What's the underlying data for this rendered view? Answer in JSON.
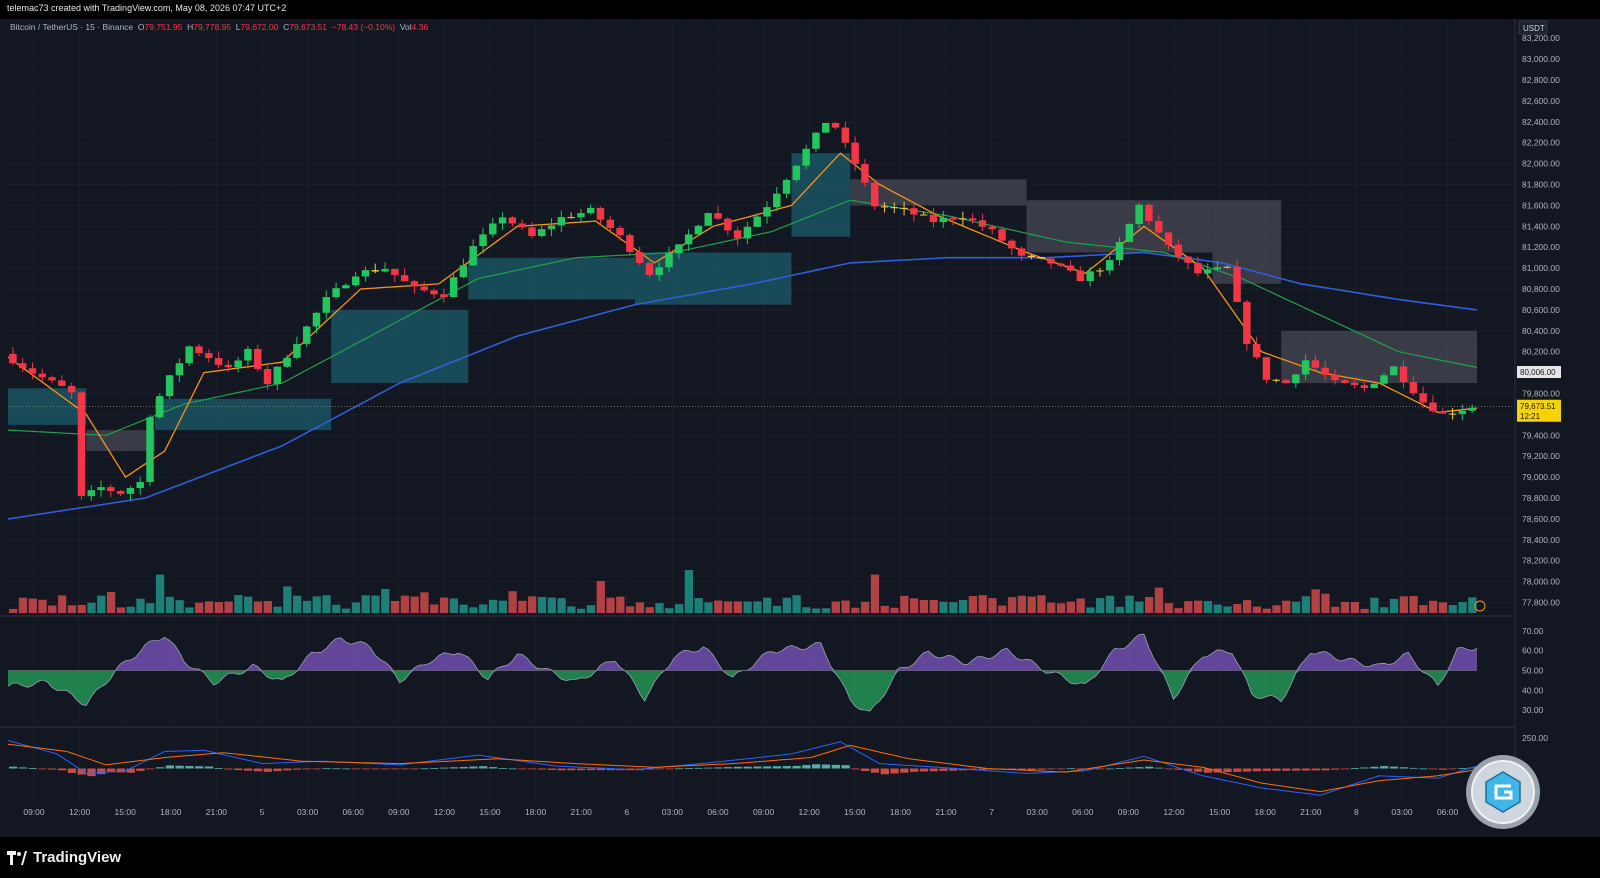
{
  "header": {
    "credit": "telemac73 created with TradingView.com, May 08, 2026 07:47 UTC+2"
  },
  "legend": {
    "symbol": "Bitcoin / TetherUS · 15 · Binance",
    "o_label": "O",
    "o_value": "79,751.95",
    "h_label": "H",
    "h_value": "79,778.95",
    "l_label": "L",
    "l_value": "79,672.00",
    "c_label": "C",
    "c_value": "79,673.51",
    "change": "−78.43 (−0.10%)",
    "vol_label": "Vol",
    "vol_value": "4.36"
  },
  "price_axis": {
    "currency": "USDT",
    "ticks": [
      "83,200.00",
      "83,000.00",
      "82,800.00",
      "82,600.00",
      "82,400.00",
      "82,200.00",
      "82,000.00",
      "81,800.00",
      "81,600.00",
      "81,400.00",
      "81,200.00",
      "81,000.00",
      "80,800.00",
      "80,600.00",
      "80,400.00",
      "80,200.00",
      "79,800.00",
      "79,600.00",
      "79,400.00",
      "79,200.00",
      "79,000.00",
      "78,800.00",
      "78,600.00",
      "78,400.00",
      "78,200.00",
      "78,000.00",
      "77,800.00"
    ],
    "level_label": "80,006.00",
    "last_price": "79,673.51",
    "countdown": "12:21"
  },
  "rsi_axis": {
    "ticks": [
      "70.00",
      "60.00",
      "50.00",
      "40.00",
      "30.00"
    ]
  },
  "macd_axis": {
    "ticks": [
      "250.00"
    ]
  },
  "time_axis": {
    "ticks": [
      "09:00",
      "12:00",
      "15:00",
      "18:00",
      "21:00",
      "5",
      "03:00",
      "06:00",
      "09:00",
      "12:00",
      "15:00",
      "18:00",
      "21:00",
      "6",
      "03:00",
      "06:00",
      "09:00",
      "12:00",
      "15:00",
      "18:00",
      "21:00",
      "7",
      "03:00",
      "06:00",
      "09:00",
      "12:00",
      "15:00",
      "18:00",
      "21:00",
      "8",
      "03:00",
      "06:00"
    ]
  },
  "brand": {
    "name": "TradingView"
  },
  "colors": {
    "bull": "#22c55e",
    "bear": "#f23645",
    "neutral": "#f7c948",
    "ema_fast": "#f7931a",
    "ma_mid": "#22a04a",
    "ma_slow": "#2f5fd7",
    "cloud_bull": "#1b5868",
    "cloud_bear": "#4a4c57",
    "vol_bull": "#26a69a",
    "vol_bear": "#ef5350",
    "rsi_up": "#7e57c2",
    "rsi_down": "#26a65b"
  },
  "chart_data": {
    "type": "candlestick",
    "title": "Bitcoin / TetherUS · 15 · Binance",
    "ylim": [
      77700,
      83250
    ],
    "last_price": 79673.51,
    "highlight_level": 80006,
    "price_path": [
      [
        0,
        80180
      ],
      [
        3,
        80000
      ],
      [
        6,
        79860
      ],
      [
        7,
        79800
      ],
      [
        8,
        78800
      ],
      [
        10,
        78900
      ],
      [
        12,
        78850
      ],
      [
        14,
        78950
      ],
      [
        15,
        79600
      ],
      [
        17,
        79950
      ],
      [
        19,
        80250
      ],
      [
        21,
        80150
      ],
      [
        23,
        80030
      ],
      [
        25,
        80200
      ],
      [
        27,
        79900
      ],
      [
        30,
        80300
      ],
      [
        33,
        80700
      ],
      [
        36,
        80950
      ],
      [
        39,
        81000
      ],
      [
        42,
        80800
      ],
      [
        45,
        80750
      ],
      [
        48,
        81200
      ],
      [
        51,
        81500
      ],
      [
        54,
        81300
      ],
      [
        57,
        81480
      ],
      [
        60,
        81550
      ],
      [
        63,
        81300
      ],
      [
        66,
        80950
      ],
      [
        69,
        81200
      ],
      [
        72,
        81550
      ],
      [
        75,
        81300
      ],
      [
        78,
        81600
      ],
      [
        81,
        82000
      ],
      [
        84,
        82400
      ],
      [
        85,
        82350
      ],
      [
        87,
        82000
      ],
      [
        89,
        81600
      ],
      [
        92,
        81550
      ],
      [
        95,
        81450
      ],
      [
        98,
        81500
      ],
      [
        101,
        81350
      ],
      [
        104,
        81100
      ],
      [
        107,
        81050
      ],
      [
        110,
        80900
      ],
      [
        113,
        81050
      ],
      [
        116,
        81600
      ],
      [
        119,
        81200
      ],
      [
        122,
        80950
      ],
      [
        125,
        81000
      ],
      [
        127,
        80300
      ],
      [
        129,
        79950
      ],
      [
        131,
        79900
      ],
      [
        133,
        80120
      ],
      [
        136,
        79900
      ],
      [
        139,
        79850
      ],
      [
        142,
        80050
      ],
      [
        145,
        79720
      ],
      [
        147,
        79600
      ],
      [
        150,
        79675
      ]
    ],
    "ema_fast": [
      [
        0,
        80150
      ],
      [
        8,
        79600
      ],
      [
        12,
        79000
      ],
      [
        16,
        79250
      ],
      [
        20,
        80000
      ],
      [
        28,
        80100
      ],
      [
        36,
        80800
      ],
      [
        44,
        80850
      ],
      [
        52,
        81400
      ],
      [
        60,
        81450
      ],
      [
        66,
        81050
      ],
      [
        72,
        81400
      ],
      [
        80,
        81600
      ],
      [
        85,
        82100
      ],
      [
        89,
        81800
      ],
      [
        95,
        81500
      ],
      [
        104,
        81150
      ],
      [
        110,
        80950
      ],
      [
        116,
        81400
      ],
      [
        122,
        81000
      ],
      [
        128,
        80200
      ],
      [
        134,
        80000
      ],
      [
        140,
        79900
      ],
      [
        146,
        79620
      ],
      [
        150,
        79660
      ]
    ],
    "ma_mid": [
      [
        0,
        79450
      ],
      [
        10,
        79400
      ],
      [
        18,
        79700
      ],
      [
        28,
        79900
      ],
      [
        38,
        80400
      ],
      [
        48,
        80900
      ],
      [
        58,
        81100
      ],
      [
        68,
        81150
      ],
      [
        78,
        81350
      ],
      [
        86,
        81650
      ],
      [
        96,
        81500
      ],
      [
        108,
        81250
      ],
      [
        118,
        81150
      ],
      [
        126,
        80900
      ],
      [
        134,
        80550
      ],
      [
        142,
        80200
      ],
      [
        150,
        80050
      ]
    ],
    "ma_slow": [
      [
        0,
        78600
      ],
      [
        14,
        78800
      ],
      [
        28,
        79300
      ],
      [
        40,
        79900
      ],
      [
        52,
        80350
      ],
      [
        64,
        80650
      ],
      [
        76,
        80850
      ],
      [
        86,
        81050
      ],
      [
        96,
        81100
      ],
      [
        106,
        81100
      ],
      [
        116,
        81150
      ],
      [
        124,
        81050
      ],
      [
        132,
        80850
      ],
      [
        142,
        80700
      ],
      [
        150,
        80600
      ]
    ],
    "cloud": [
      {
        "from": 0,
        "to": 8,
        "top": 79850,
        "bottom": 79500,
        "bull": true
      },
      {
        "from": 8,
        "to": 15,
        "top": 79450,
        "bottom": 79250,
        "bull": false
      },
      {
        "from": 15,
        "to": 33,
        "top": 79750,
        "bottom": 79450,
        "bull": true
      },
      {
        "from": 33,
        "to": 47,
        "top": 80600,
        "bottom": 79900,
        "bull": true
      },
      {
        "from": 47,
        "to": 64,
        "top": 81100,
        "bottom": 80700,
        "bull": true
      },
      {
        "from": 64,
        "to": 80,
        "top": 81150,
        "bottom": 80650,
        "bull": true
      },
      {
        "from": 80,
        "to": 86,
        "top": 82100,
        "bottom": 81300,
        "bull": true
      },
      {
        "from": 86,
        "to": 104,
        "top": 81850,
        "bottom": 81600,
        "bull": false
      },
      {
        "from": 104,
        "to": 123,
        "top": 81650,
        "bottom": 81150,
        "bull": false
      },
      {
        "from": 123,
        "to": 130,
        "top": 81650,
        "bottom": 80850,
        "bull": false
      },
      {
        "from": 130,
        "to": 150,
        "top": 80400,
        "bottom": 79900,
        "bull": false
      }
    ],
    "rsi_ylim": [
      25,
      75
    ],
    "rsi": [
      [
        0,
        42
      ],
      [
        4,
        44
      ],
      [
        8,
        33
      ],
      [
        11,
        50
      ],
      [
        14,
        62
      ],
      [
        16,
        68
      ],
      [
        18,
        55
      ],
      [
        21,
        44
      ],
      [
        25,
        52
      ],
      [
        28,
        44
      ],
      [
        31,
        58
      ],
      [
        34,
        66
      ],
      [
        37,
        62
      ],
      [
        40,
        45
      ],
      [
        43,
        55
      ],
      [
        46,
        60
      ],
      [
        49,
        46
      ],
      [
        52,
        58
      ],
      [
        55,
        50
      ],
      [
        58,
        44
      ],
      [
        62,
        56
      ],
      [
        65,
        36
      ],
      [
        68,
        57
      ],
      [
        71,
        62
      ],
      [
        74,
        46
      ],
      [
        78,
        60
      ],
      [
        83,
        63
      ],
      [
        86,
        35
      ],
      [
        88,
        28
      ],
      [
        91,
        50
      ],
      [
        94,
        59
      ],
      [
        98,
        54
      ],
      [
        102,
        60
      ],
      [
        106,
        50
      ],
      [
        110,
        42
      ],
      [
        113,
        60
      ],
      [
        116,
        68
      ],
      [
        119,
        36
      ],
      [
        122,
        58
      ],
      [
        125,
        60
      ],
      [
        127,
        38
      ],
      [
        130,
        35
      ],
      [
        133,
        60
      ],
      [
        137,
        55
      ],
      [
        140,
        52
      ],
      [
        143,
        58
      ],
      [
        146,
        42
      ],
      [
        148,
        60
      ],
      [
        150,
        62
      ]
    ],
    "macd_ylim": [
      -300,
      300
    ],
    "macd": [
      [
        0,
        230
      ],
      [
        5,
        120
      ],
      [
        8,
        -40
      ],
      [
        12,
        -20
      ],
      [
        16,
        140
      ],
      [
        20,
        150
      ],
      [
        26,
        40
      ],
      [
        32,
        60
      ],
      [
        40,
        30
      ],
      [
        48,
        110
      ],
      [
        56,
        20
      ],
      [
        64,
        -10
      ],
      [
        72,
        50
      ],
      [
        80,
        120
      ],
      [
        85,
        220
      ],
      [
        89,
        40
      ],
      [
        95,
        10
      ],
      [
        104,
        -40
      ],
      [
        110,
        -20
      ],
      [
        116,
        100
      ],
      [
        122,
        -60
      ],
      [
        128,
        -160
      ],
      [
        134,
        -220
      ],
      [
        140,
        -60
      ],
      [
        146,
        -80
      ],
      [
        150,
        20
      ]
    ],
    "signal": [
      [
        0,
        200
      ],
      [
        6,
        140
      ],
      [
        10,
        30
      ],
      [
        16,
        90
      ],
      [
        22,
        130
      ],
      [
        30,
        60
      ],
      [
        40,
        40
      ],
      [
        50,
        80
      ],
      [
        58,
        40
      ],
      [
        66,
        10
      ],
      [
        74,
        40
      ],
      [
        82,
        90
      ],
      [
        86,
        190
      ],
      [
        92,
        80
      ],
      [
        100,
        0
      ],
      [
        108,
        -30
      ],
      [
        116,
        70
      ],
      [
        122,
        10
      ],
      [
        128,
        -120
      ],
      [
        134,
        -190
      ],
      [
        140,
        -100
      ],
      [
        146,
        -60
      ],
      [
        150,
        -10
      ]
    ]
  }
}
